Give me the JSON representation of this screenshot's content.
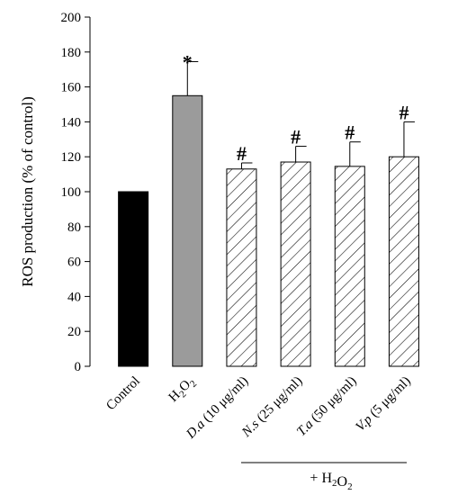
{
  "chart_data": {
    "type": "bar",
    "ylabel": "ROS production (% of control)",
    "ylim": [
      0,
      200
    ],
    "yticks": [
      0,
      20,
      40,
      60,
      80,
      100,
      120,
      140,
      160,
      180,
      200
    ],
    "grid": false,
    "categories": [
      {
        "main": "Control",
        "suffix": "",
        "italic": false
      },
      {
        "main": "H2O2",
        "suffix": "",
        "italic": false
      },
      {
        "main": "D.a",
        "suffix": " (10 μg/ml)",
        "italic": true
      },
      {
        "main": "N.s",
        "suffix": " (25 μg/ml)",
        "italic": true
      },
      {
        "main": "T.a",
        "suffix": " (50 μg/ml)",
        "italic": true
      },
      {
        "main": "V.p",
        "suffix": " (5 μg/ml)",
        "italic": true
      }
    ],
    "values": [
      100,
      155,
      113,
      117,
      114.5,
      120
    ],
    "errors": [
      0,
      19.5,
      3.5,
      9,
      14,
      20
    ],
    "styles": [
      "solid-black",
      "solid-gray",
      "hatched",
      "hatched",
      "hatched",
      "hatched"
    ],
    "colors": {
      "control": "#000000",
      "h2o2": "#9b9b9b",
      "hatch": "#000000"
    },
    "markers": [
      "",
      "*",
      "#",
      "#",
      "#",
      "#"
    ],
    "group_label": "+ H2O2"
  }
}
